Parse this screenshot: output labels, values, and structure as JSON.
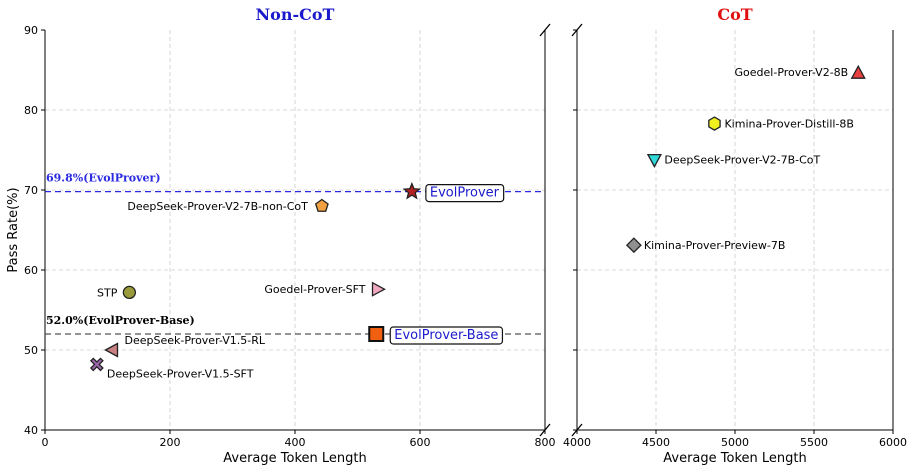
{
  "chart_data": [
    {
      "type": "scatter",
      "title": "Non-CoT",
      "title_color": "#1a1acc",
      "xlabel": "Average Token Length",
      "ylabel": "Pass Rate(%)",
      "xlim": [
        0,
        800
      ],
      "ylim": [
        40,
        90
      ],
      "xticks": [
        0,
        200,
        400,
        600,
        800
      ],
      "yticks": [
        40,
        50,
        60,
        70,
        80,
        90
      ],
      "grid": true,
      "points": [
        {
          "name": "EvolProver",
          "x": 587,
          "y": 69.8,
          "marker": "star",
          "color": "#b22222",
          "boxed": true
        },
        {
          "name": "DeepSeek-Prover-V2-7B-non-CoT",
          "x": 443,
          "y": 68.0,
          "marker": "pentagon",
          "color": "#f0a040"
        },
        {
          "name": "STP",
          "x": 135,
          "y": 57.2,
          "marker": "circle",
          "color": "#9a9a3a"
        },
        {
          "name": "Goedel-Prover-SFT",
          "x": 532,
          "y": 57.6,
          "marker": "triangle-right",
          "color": "#f0a8c0"
        },
        {
          "name": "EvolProver-Base",
          "x": 530,
          "y": 52.0,
          "marker": "square",
          "color": "#f06010",
          "boxed": true
        },
        {
          "name": "DeepSeek-Prover-V1.5-RL",
          "x": 108,
          "y": 50.0,
          "marker": "triangle-left",
          "color": "#c88080"
        },
        {
          "name": "DeepSeek-Prover-V1.5-SFT",
          "x": 83,
          "y": 48.2,
          "marker": "x",
          "color": "#9966aa"
        }
      ],
      "reference_lines": [
        {
          "y": 69.8,
          "label": "69.8%(EvolProver)",
          "color": "#2a2ae0"
        },
        {
          "y": 52.0,
          "label": "52.0%(EvolProver-Base)",
          "color": "#555555"
        }
      ]
    },
    {
      "type": "scatter",
      "title": "CoT",
      "title_color": "#e01010",
      "xlabel": "Average Token Length",
      "xlim": [
        4000,
        6000
      ],
      "ylim": [
        40,
        90
      ],
      "xticks": [
        4000,
        4500,
        5000,
        5500,
        6000
      ],
      "grid": true,
      "points": [
        {
          "name": "Goedel-Prover-V2-8B",
          "x": 5780,
          "y": 84.6,
          "marker": "triangle-up",
          "color": "#e84040"
        },
        {
          "name": "Kimina-Prover-Distill-8B",
          "x": 4870,
          "y": 78.3,
          "marker": "hexagon",
          "color": "#f0f020"
        },
        {
          "name": "DeepSeek-Prover-V2-7B-CoT",
          "x": 4490,
          "y": 73.8,
          "marker": "triangle-down",
          "color": "#30d8d8"
        },
        {
          "name": "Kimina-Prover-Preview-7B",
          "x": 4360,
          "y": 63.1,
          "marker": "diamond",
          "color": "#909090"
        }
      ]
    }
  ]
}
